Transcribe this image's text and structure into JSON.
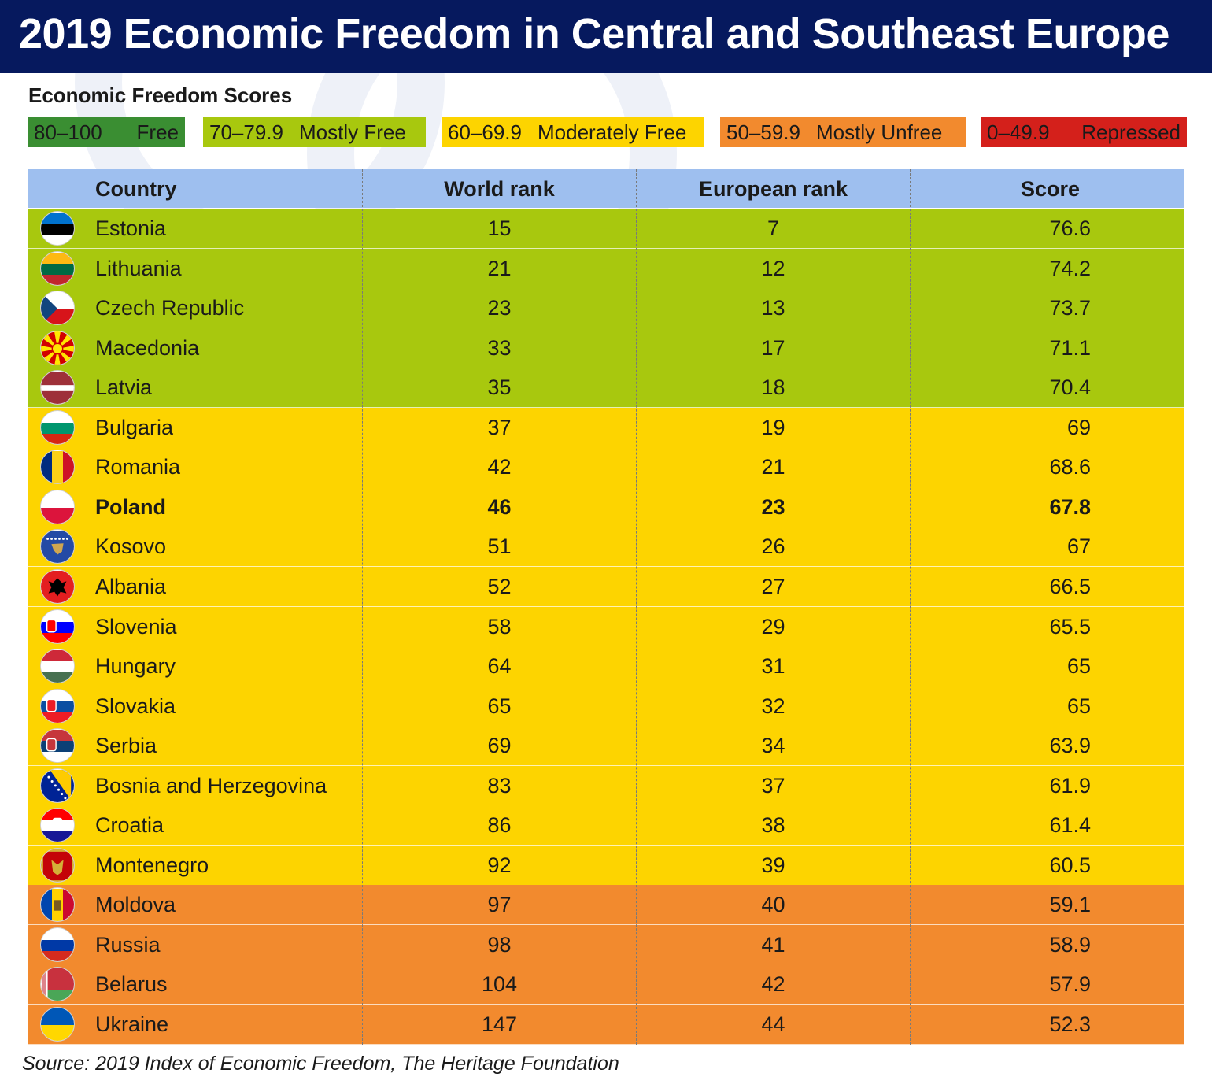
{
  "title": "2019 Economic Freedom in Central and Southeast Europe",
  "legend": {
    "title": "Economic Freedom Scores",
    "items": [
      {
        "range": "80–100",
        "label": "Free",
        "color": "#3a8e32"
      },
      {
        "range": "70–79.9",
        "label": "Mostly Free",
        "color": "#a8c80e"
      },
      {
        "range": "60–69.9",
        "label": "Moderately Free",
        "color": "#fdd400"
      },
      {
        "range": "50–59.9",
        "label": "Mostly Unfree",
        "color": "#f28a2e"
      },
      {
        "range": "0–49.9",
        "label": "Repressed",
        "color": "#d4201b"
      }
    ]
  },
  "source": "Source: 2019 Index of Economic Freedom, The Heritage Foundation",
  "chart_data": {
    "type": "table",
    "columns": [
      "Country",
      "World rank",
      "European rank",
      "Score"
    ],
    "highlight": "Poland",
    "rows": [
      {
        "country": "Estonia",
        "world_rank": 15,
        "european_rank": 7,
        "score": "76.6",
        "flag": [
          "#0072ce",
          "#000000",
          "#ffffff"
        ],
        "flag_icon": "estonia-flag-icon"
      },
      {
        "country": "Lithuania",
        "world_rank": 21,
        "european_rank": 12,
        "score": "74.2",
        "flag": [
          "#fdb913",
          "#006a44",
          "#c1272d"
        ],
        "flag_icon": "lithuania-flag-icon"
      },
      {
        "country": "Czech Republic",
        "world_rank": 23,
        "european_rank": 13,
        "score": "73.7",
        "flag": [
          "#ffffff",
          "#d7141a"
        ],
        "flag_icon": "czech-flag-icon"
      },
      {
        "country": "Macedonia",
        "world_rank": 33,
        "european_rank": 17,
        "score": "71.1",
        "flag": [
          "#d20000",
          "#ffe600"
        ],
        "flag_icon": "macedonia-flag-icon"
      },
      {
        "country": "Latvia",
        "world_rank": 35,
        "european_rank": 18,
        "score": "70.4",
        "flag": [
          "#9e3039",
          "#ffffff",
          "#9e3039"
        ],
        "flag_icon": "latvia-flag-icon"
      },
      {
        "country": "Bulgaria",
        "world_rank": 37,
        "european_rank": 19,
        "score": "69",
        "flag": [
          "#ffffff",
          "#00966e",
          "#d62612"
        ],
        "flag_icon": "bulgaria-flag-icon"
      },
      {
        "country": "Romania",
        "world_rank": 42,
        "european_rank": 21,
        "score": "68.6",
        "flag": [
          "#002b7f",
          "#fcd116",
          "#ce1126"
        ],
        "flag_icon": "romania-flag-icon"
      },
      {
        "country": "Poland",
        "world_rank": 46,
        "european_rank": 23,
        "score": "67.8",
        "flag": [
          "#ffffff",
          "#dc143c"
        ],
        "flag_icon": "poland-flag-icon"
      },
      {
        "country": "Kosovo",
        "world_rank": 51,
        "european_rank": 26,
        "score": "67",
        "flag": [
          "#244aa5"
        ],
        "flag_icon": "kosovo-flag-icon"
      },
      {
        "country": "Albania",
        "world_rank": 52,
        "european_rank": 27,
        "score": "66.5",
        "flag": [
          "#e41e20"
        ],
        "flag_icon": "albania-flag-icon"
      },
      {
        "country": "Slovenia",
        "world_rank": 58,
        "european_rank": 29,
        "score": "65.5",
        "flag": [
          "#ffffff",
          "#0000ff",
          "#ff0000"
        ],
        "flag_icon": "slovenia-flag-icon"
      },
      {
        "country": "Hungary",
        "world_rank": 64,
        "european_rank": 31,
        "score": "65",
        "flag": [
          "#ce2939",
          "#ffffff",
          "#477050"
        ],
        "flag_icon": "hungary-flag-icon"
      },
      {
        "country": "Slovakia",
        "world_rank": 65,
        "european_rank": 32,
        "score": "65",
        "flag": [
          "#ffffff",
          "#0b4ea2",
          "#ee1c25"
        ],
        "flag_icon": "slovakia-flag-icon"
      },
      {
        "country": "Serbia",
        "world_rank": 69,
        "european_rank": 34,
        "score": "63.9",
        "flag": [
          "#c6363c",
          "#0c4076",
          "#ffffff"
        ],
        "flag_icon": "serbia-flag-icon"
      },
      {
        "country": "Bosnia and Herzegovina",
        "world_rank": 83,
        "european_rank": 37,
        "score": "61.9",
        "flag": [
          "#002395"
        ],
        "flag_icon": "bosnia-flag-icon"
      },
      {
        "country": "Croatia",
        "world_rank": 86,
        "european_rank": 38,
        "score": "61.4",
        "flag": [
          "#ff0000",
          "#ffffff",
          "#171796"
        ],
        "flag_icon": "croatia-flag-icon"
      },
      {
        "country": "Montenegro",
        "world_rank": 92,
        "european_rank": 39,
        "score": "60.5",
        "flag": [
          "#c40308"
        ],
        "flag_icon": "montenegro-flag-icon"
      },
      {
        "country": "Moldova",
        "world_rank": 97,
        "european_rank": 40,
        "score": "59.1",
        "flag": [
          "#0046ae",
          "#ffd200",
          "#cc092f"
        ],
        "flag_icon": "moldova-flag-icon"
      },
      {
        "country": "Russia",
        "world_rank": 98,
        "european_rank": 41,
        "score": "58.9",
        "flag": [
          "#ffffff",
          "#0039a6",
          "#d52b1e"
        ],
        "flag_icon": "russia-flag-icon"
      },
      {
        "country": "Belarus",
        "world_rank": 104,
        "european_rank": 42,
        "score": "57.9",
        "flag": [
          "#c8313e",
          "#c8313e",
          "#4aa657"
        ],
        "flag_icon": "belarus-flag-icon"
      },
      {
        "country": "Ukraine",
        "world_rank": 147,
        "european_rank": 44,
        "score": "52.3",
        "flag": [
          "#0057b7",
          "#ffd700"
        ],
        "flag_icon": "ukraine-flag-icon"
      }
    ]
  }
}
